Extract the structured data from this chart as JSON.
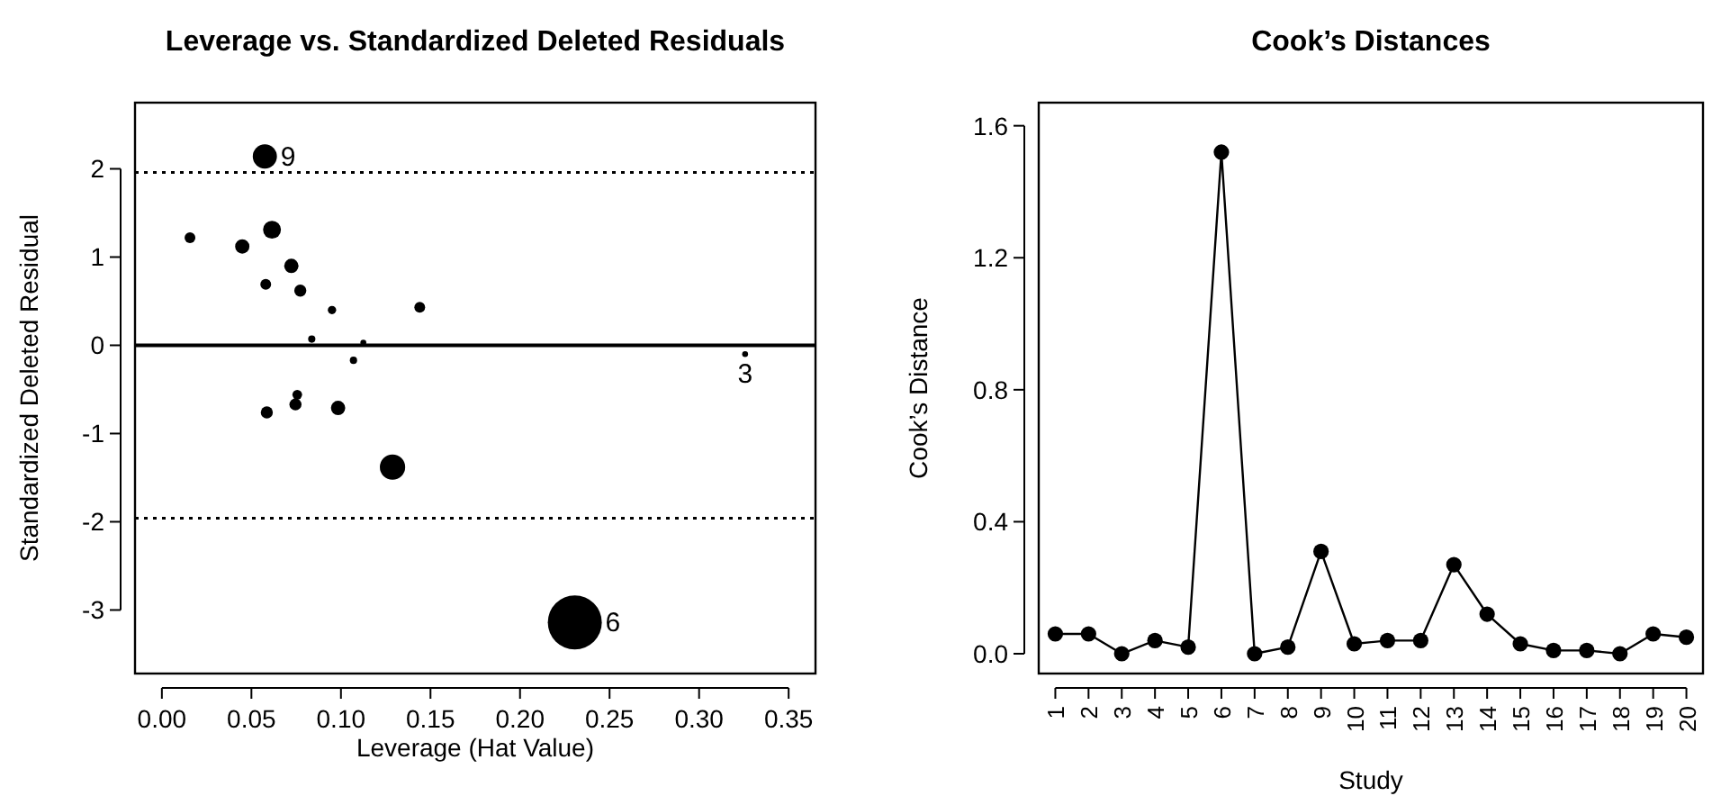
{
  "chart_data": [
    {
      "type": "bubble",
      "title": "Leverage vs. Standardized Deleted Residuals",
      "xlabel": "Leverage (Hat Value)",
      "ylabel": "Standardized Deleted Residual",
      "x": [
        0.0575,
        0.0157,
        0.0449,
        0.0615,
        0.0723,
        0.058,
        0.0773,
        0.095,
        0.144,
        0.0837,
        0.1125,
        0.107,
        0.3257,
        0.0756,
        0.0746,
        0.0586,
        0.0984,
        0.1288,
        0.2306
      ],
      "series": [
        {
          "color": "#000000",
          "values": [
            2.14,
            1.22,
            1.12,
            1.31,
            0.9,
            0.69,
            0.62,
            0.4,
            0.43,
            0.07,
            0.03,
            -0.17,
            -0.1,
            -0.56,
            -0.67,
            -0.76,
            -0.71,
            -1.38,
            -3.14
          ],
          "sizes": [
            0.2,
            0.04,
            0.07,
            0.11,
            0.07,
            0.04,
            0.05,
            0.024,
            0.04,
            0.018,
            0.012,
            0.018,
            0.012,
            0.032,
            0.05,
            0.05,
            0.07,
            0.22,
            1
          ]
        }
      ],
      "xlim": [
        -0.015,
        0.365
      ],
      "ylim": [
        -3.72,
        2.75
      ],
      "xticks": [
        {
          "value": 0,
          "label": "0.00"
        },
        {
          "value": 0.05,
          "label": "0.05"
        },
        {
          "value": 0.1,
          "label": "0.10"
        },
        {
          "value": 0.15,
          "label": "0.15"
        },
        {
          "value": 0.2,
          "label": "0.20"
        },
        {
          "value": 0.25,
          "label": "0.25"
        },
        {
          "value": 0.3,
          "label": "0.30"
        },
        {
          "value": 0.35,
          "label": "0.35"
        }
      ],
      "yticks": [
        -3,
        -2,
        -1,
        0,
        1,
        2
      ],
      "ref_lines": [
        {
          "axis": "y",
          "value": 1.96,
          "line_style": "dotted"
        },
        {
          "axis": "y",
          "value": 0,
          "line_style": "solid"
        },
        {
          "axis": "y",
          "value": -1.96,
          "line_style": "dotted"
        }
      ],
      "annotations": [
        {
          "text": "9",
          "x": 0.0575,
          "y": 2.14
        },
        {
          "text": "3",
          "x": 0.3257,
          "y": -0.1
        },
        {
          "text": "6",
          "x": 0.2306,
          "y": -3.14
        }
      ]
    },
    {
      "type": "line",
      "title": "Cook’s Distances",
      "xlabel": "Study",
      "ylabel": "Cook’s Distance",
      "marker": "circle",
      "line_style": "solid",
      "categories": [
        "1",
        "2",
        "3",
        "4",
        "5",
        "6",
        "7",
        "8",
        "9",
        "10",
        "11",
        "12",
        "13",
        "14",
        "15",
        "16",
        "17",
        "18",
        "19",
        "20"
      ],
      "series": [
        {
          "color": "#000000",
          "values": [
            0.06,
            0.06,
            0.0,
            0.04,
            0.02,
            1.52,
            0.0,
            0.02,
            0.31,
            0.03,
            0.04,
            0.04,
            0.27,
            0.12,
            0.03,
            0.01,
            0.01,
            0.0,
            0.06,
            0.05
          ]
        }
      ],
      "ylim": [
        -0.06,
        1.67
      ],
      "yticks": [
        {
          "value": 0,
          "label": "0.0"
        },
        {
          "value": 0.4,
          "label": "0.4"
        },
        {
          "value": 0.8,
          "label": "0.8"
        },
        {
          "value": 1.2,
          "label": "1.2"
        },
        {
          "value": 1.6,
          "label": "1.6"
        }
      ]
    }
  ]
}
